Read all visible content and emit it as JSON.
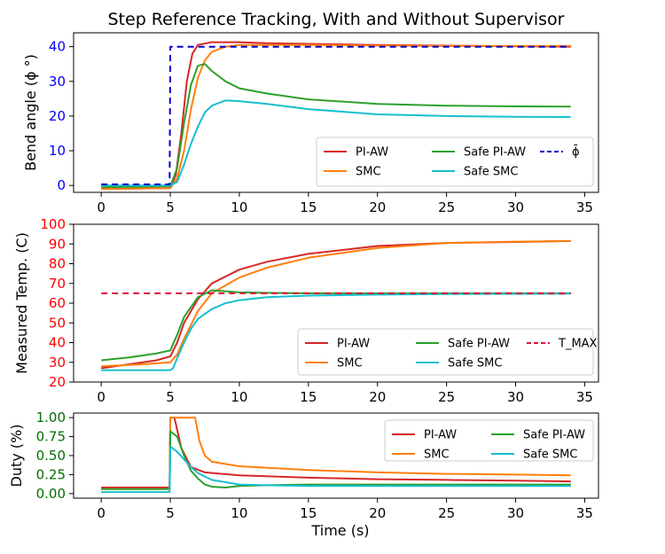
{
  "title": "Step Reference Tracking, With and Without Supervisor",
  "colors": {
    "pi_aw": "#d62728",
    "smc": "#ff7f0e",
    "safe_pi_aw": "#2ca02c",
    "safe_smc": "#17becf",
    "ref": "#0000cc",
    "tmax": "#dc143c",
    "angle_ticks": "#0000ff",
    "temp_ticks": "#ff0000",
    "duty_ticks": "#007000"
  },
  "chart_data": [
    {
      "id": "angle",
      "type": "line",
      "xlabel": "",
      "ylabel": "Bend angle (ϕ °)",
      "xlim": [
        -2,
        36
      ],
      "ylim": [
        -2,
        44
      ],
      "xticks": [
        0,
        5,
        10,
        15,
        20,
        25,
        30,
        35
      ],
      "yticks": [
        0,
        10,
        20,
        30,
        40
      ],
      "ytick_labels": [
        "0",
        "10",
        "20",
        "30",
        "40"
      ],
      "tick_color_key": "angle_ticks",
      "legend": {
        "position": "bottom-right",
        "columns": 3
      },
      "series": [
        {
          "name": "PI-AW",
          "color_key": "pi_aw",
          "dash": "",
          "x": [
            0,
            5,
            5.4,
            5.8,
            6.2,
            6.6,
            7,
            8,
            10,
            12,
            15,
            20,
            25,
            30,
            34
          ],
          "y": [
            -1,
            -0.8,
            3,
            15,
            30,
            38,
            40.5,
            41.3,
            41.3,
            41,
            40.8,
            40.5,
            40.3,
            40.1,
            40
          ]
        },
        {
          "name": "SMC",
          "color_key": "smc",
          "dash": "",
          "x": [
            0,
            5,
            5.5,
            6,
            6.5,
            7,
            7.5,
            8,
            9,
            10,
            15,
            20,
            25,
            30,
            34
          ],
          "y": [
            -1,
            -0.8,
            2,
            10,
            22,
            31,
            36,
            38.5,
            40,
            40.5,
            40.5,
            40.3,
            40.2,
            40.2,
            40.2
          ]
        },
        {
          "name": "Safe PI-AW",
          "color_key": "safe_pi_aw",
          "dash": "",
          "x": [
            0,
            5,
            5.5,
            6,
            6.5,
            7,
            7.5,
            8,
            9,
            10,
            12,
            15,
            20,
            25,
            30,
            34
          ],
          "y": [
            -0.5,
            -0.3,
            5,
            18,
            29,
            34.5,
            35,
            33,
            30,
            28,
            26.5,
            24.8,
            23.5,
            23,
            22.8,
            22.7
          ]
        },
        {
          "name": "Safe SMC",
          "color_key": "safe_smc",
          "dash": "",
          "x": [
            0,
            5,
            5.5,
            6,
            6.5,
            7,
            7.5,
            8,
            9,
            10,
            12,
            15,
            20,
            25,
            30,
            34
          ],
          "y": [
            0,
            0,
            1,
            6,
            12,
            17,
            21,
            23,
            24.5,
            24.3,
            23.5,
            22,
            20.5,
            20,
            19.8,
            19.7
          ]
        },
        {
          "name": "ϕ̄",
          "color_key": "ref",
          "dash": "7,5",
          "x": [
            0,
            4.95,
            5,
            34
          ],
          "y": [
            0.3,
            0.3,
            40,
            40
          ]
        }
      ]
    },
    {
      "id": "temp",
      "type": "line",
      "xlabel": "",
      "ylabel": "Measured Temp. (C)",
      "xlim": [
        -2,
        36
      ],
      "ylim": [
        20,
        100
      ],
      "xticks": [
        0,
        5,
        10,
        15,
        20,
        25,
        30,
        35
      ],
      "yticks": [
        20,
        30,
        40,
        50,
        60,
        70,
        80,
        90,
        100
      ],
      "ytick_labels": [
        "20",
        "30",
        "40",
        "50",
        "60",
        "70",
        "80",
        "90",
        "100"
      ],
      "tick_color_key": "temp_ticks",
      "legend": {
        "position": "bottom-right",
        "columns": 3
      },
      "series": [
        {
          "name": "PI-AW",
          "color_key": "pi_aw",
          "dash": "",
          "x": [
            0,
            2,
            4,
            5,
            5.5,
            6,
            7,
            8,
            10,
            12,
            15,
            20,
            25,
            30,
            34
          ],
          "y": [
            27,
            29,
            31,
            33,
            40,
            50,
            62,
            70,
            77,
            81,
            85,
            89,
            90.5,
            91,
            91.5
          ]
        },
        {
          "name": "SMC",
          "color_key": "smc",
          "dash": "",
          "x": [
            0,
            3,
            5,
            5.5,
            6,
            7,
            8,
            10,
            12,
            15,
            20,
            25,
            30,
            34
          ],
          "y": [
            28,
            29,
            30,
            34,
            42,
            56,
            65,
            73,
            78,
            83,
            88,
            90.5,
            91.2,
            91.5
          ]
        },
        {
          "name": "Safe PI-AW",
          "color_key": "safe_pi_aw",
          "dash": "",
          "x": [
            0,
            2,
            4,
            5,
            5.5,
            6,
            7,
            8,
            9,
            10,
            12,
            15,
            20,
            25,
            30,
            34
          ],
          "y": [
            31,
            32.5,
            34.5,
            36,
            44,
            53,
            63,
            66.5,
            66,
            65.5,
            65.2,
            65,
            65,
            65,
            65,
            65
          ]
        },
        {
          "name": "Safe SMC",
          "color_key": "safe_smc",
          "dash": "",
          "x": [
            0,
            5,
            5.2,
            5.5,
            6,
            6.5,
            7,
            8,
            9,
            10,
            12,
            15,
            20,
            25,
            30,
            34
          ],
          "y": [
            26,
            26,
            27,
            32,
            40,
            47,
            52,
            57,
            60,
            61.5,
            63,
            63.8,
            64.3,
            64.6,
            64.7,
            64.8
          ]
        },
        {
          "name": "T_MAX",
          "color_key": "tmax",
          "dash": "7,5",
          "x": [
            0,
            34
          ],
          "y": [
            65,
            65
          ]
        }
      ]
    },
    {
      "id": "duty",
      "type": "line",
      "xlabel": "Time (s)",
      "ylabel": "Duty (%)",
      "xlim": [
        -2,
        36
      ],
      "ylim": [
        -0.06,
        1.06
      ],
      "xticks": [
        0,
        5,
        10,
        15,
        20,
        25,
        30,
        35
      ],
      "yticks": [
        0,
        0.25,
        0.5,
        0.75,
        1.0
      ],
      "ytick_labels": [
        "0.00",
        "0.25",
        "0.50",
        "0.75",
        "1.00"
      ],
      "tick_color_key": "duty_ticks",
      "legend": {
        "position": "top-right",
        "columns": 2
      },
      "series": [
        {
          "name": "PI-AW",
          "color_key": "pi_aw",
          "dash": "",
          "x": [
            0,
            4.95,
            5,
            5.3,
            5.8,
            6.5,
            7.5,
            10,
            15,
            20,
            25,
            30,
            34
          ],
          "y": [
            0.08,
            0.08,
            1.0,
            1.0,
            0.6,
            0.35,
            0.28,
            0.24,
            0.21,
            0.19,
            0.18,
            0.17,
            0.16
          ]
        },
        {
          "name": "SMC",
          "color_key": "smc",
          "dash": "",
          "x": [
            0,
            4.95,
            5,
            6.8,
            7.1,
            7.5,
            8,
            10,
            15,
            20,
            25,
            30,
            34
          ],
          "y": [
            0.06,
            0.06,
            1.0,
            1.0,
            0.7,
            0.5,
            0.42,
            0.36,
            0.31,
            0.28,
            0.26,
            0.25,
            0.24
          ]
        },
        {
          "name": "Safe PI-AW",
          "color_key": "safe_pi_aw",
          "dash": "",
          "x": [
            0,
            4.95,
            5,
            5.5,
            6,
            6.5,
            7,
            7.5,
            8,
            9,
            10,
            12,
            15,
            20,
            25,
            30,
            34
          ],
          "y": [
            0.06,
            0.06,
            0.82,
            0.75,
            0.5,
            0.3,
            0.2,
            0.12,
            0.09,
            0.08,
            0.1,
            0.11,
            0.12,
            0.12,
            0.12,
            0.12,
            0.12
          ]
        },
        {
          "name": "Safe SMC",
          "color_key": "safe_smc",
          "dash": "",
          "x": [
            0,
            4.95,
            5,
            5.5,
            6,
            6.5,
            7,
            8,
            10,
            12,
            15,
            20,
            25,
            30,
            34
          ],
          "y": [
            0.02,
            0.02,
            0.62,
            0.55,
            0.45,
            0.35,
            0.27,
            0.18,
            0.12,
            0.11,
            0.1,
            0.1,
            0.1,
            0.1,
            0.1
          ]
        }
      ]
    }
  ]
}
